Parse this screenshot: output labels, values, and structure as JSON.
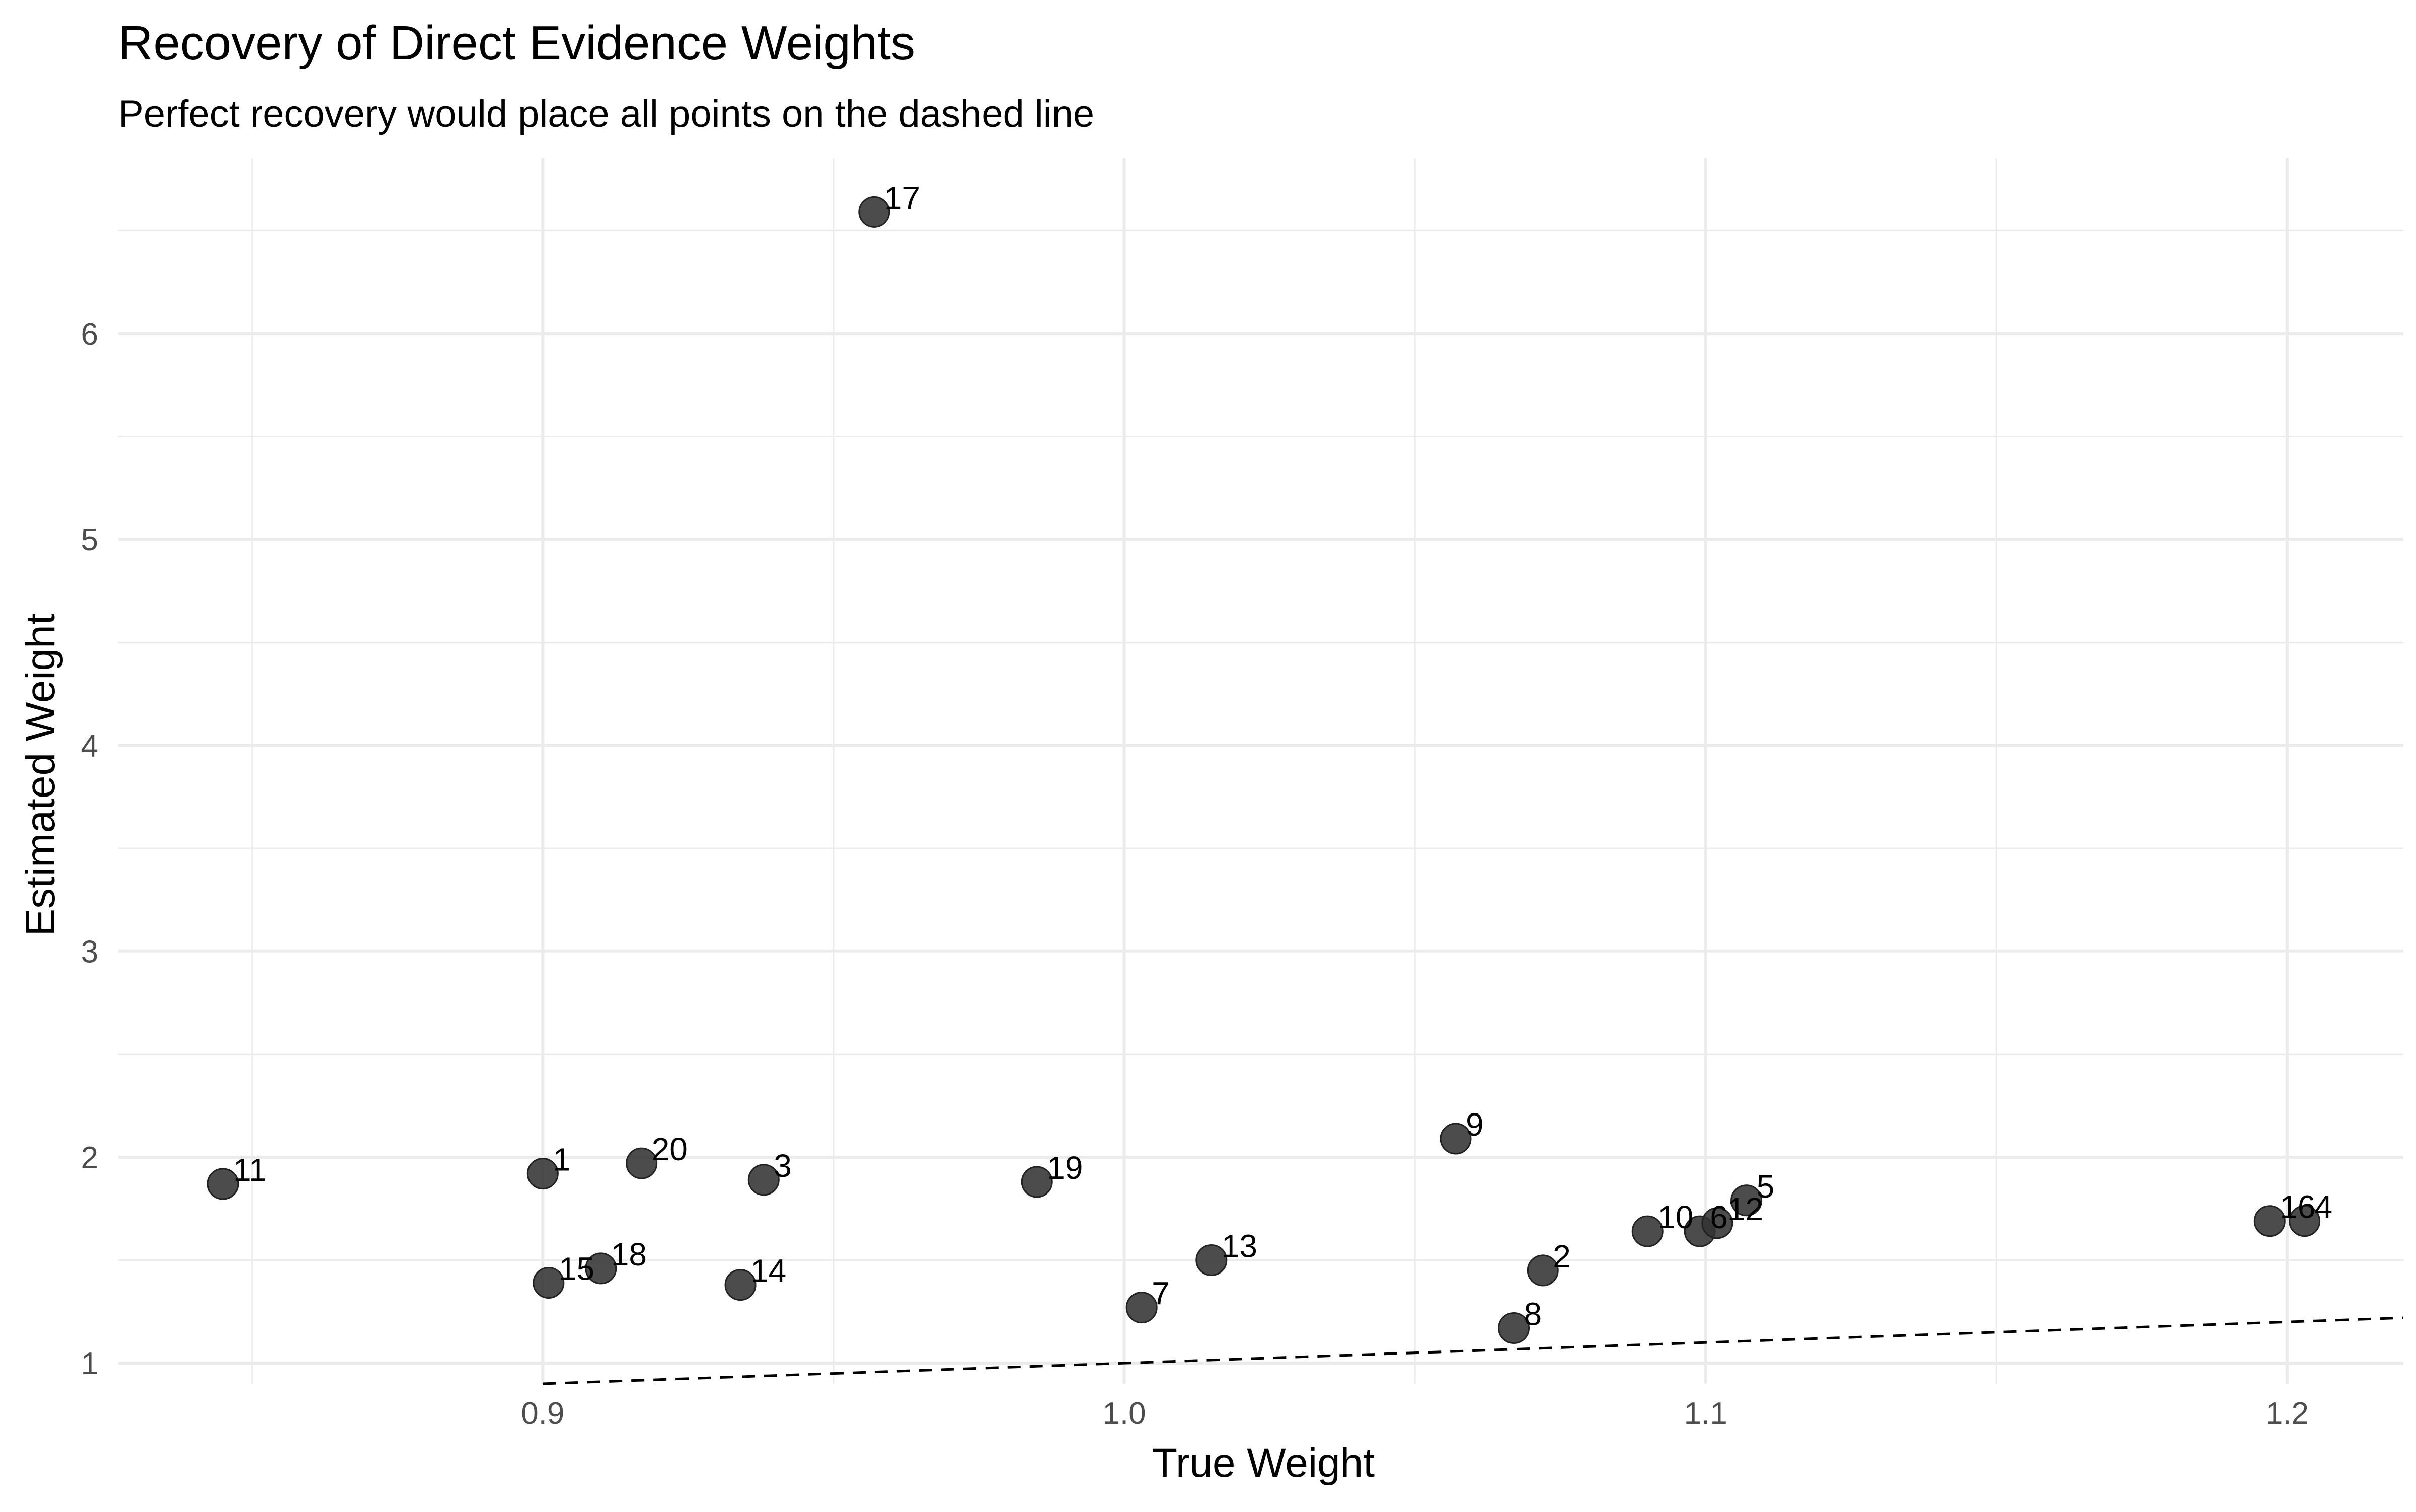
{
  "chart_data": {
    "type": "scatter",
    "title": "Recovery of Direct Evidence Weights",
    "subtitle": "Perfect recovery would place all points on the dashed line",
    "xlabel": "True Weight",
    "ylabel": "Estimated Weight",
    "xlim": [
      0.827,
      1.22
    ],
    "ylim": [
      0.9,
      6.85
    ],
    "x_ticks": [
      0.9,
      1.0,
      1.1,
      1.2
    ],
    "x_tick_labels": [
      "0.9",
      "1.0",
      "1.1",
      "1.2"
    ],
    "x_minor_ticks": [
      0.85,
      0.95,
      1.05,
      1.15
    ],
    "y_ticks": [
      1,
      2,
      3,
      4,
      5,
      6
    ],
    "y_tick_labels": [
      "1",
      "2",
      "3",
      "4",
      "5",
      "6"
    ],
    "y_minor_ticks": [
      1.5,
      2.5,
      3.5,
      4.5,
      5.5,
      6.5
    ],
    "grid": true,
    "reference_line": {
      "slope": 1,
      "intercept": 0,
      "style": "dashed"
    },
    "points": [
      {
        "label": "1",
        "x": 0.9,
        "y": 1.92
      },
      {
        "label": "2",
        "x": 1.072,
        "y": 1.45
      },
      {
        "label": "3",
        "x": 0.938,
        "y": 1.89
      },
      {
        "label": "4",
        "x": 1.203,
        "y": 1.69
      },
      {
        "label": "5",
        "x": 1.107,
        "y": 1.79
      },
      {
        "label": "6",
        "x": 1.099,
        "y": 1.64
      },
      {
        "label": "7",
        "x": 1.003,
        "y": 1.27
      },
      {
        "label": "8",
        "x": 1.067,
        "y": 1.17
      },
      {
        "label": "9",
        "x": 1.057,
        "y": 2.09
      },
      {
        "label": "10",
        "x": 1.09,
        "y": 1.64
      },
      {
        "label": "11",
        "x": 0.845,
        "y": 1.87
      },
      {
        "label": "12",
        "x": 1.102,
        "y": 1.68
      },
      {
        "label": "13",
        "x": 1.015,
        "y": 1.5
      },
      {
        "label": "14",
        "x": 0.934,
        "y": 1.38
      },
      {
        "label": "15",
        "x": 0.901,
        "y": 1.39
      },
      {
        "label": "16",
        "x": 1.197,
        "y": 1.69
      },
      {
        "label": "17",
        "x": 0.957,
        "y": 6.59
      },
      {
        "label": "18",
        "x": 0.91,
        "y": 1.46
      },
      {
        "label": "19",
        "x": 0.985,
        "y": 1.88
      },
      {
        "label": "20",
        "x": 0.917,
        "y": 1.97
      }
    ]
  }
}
